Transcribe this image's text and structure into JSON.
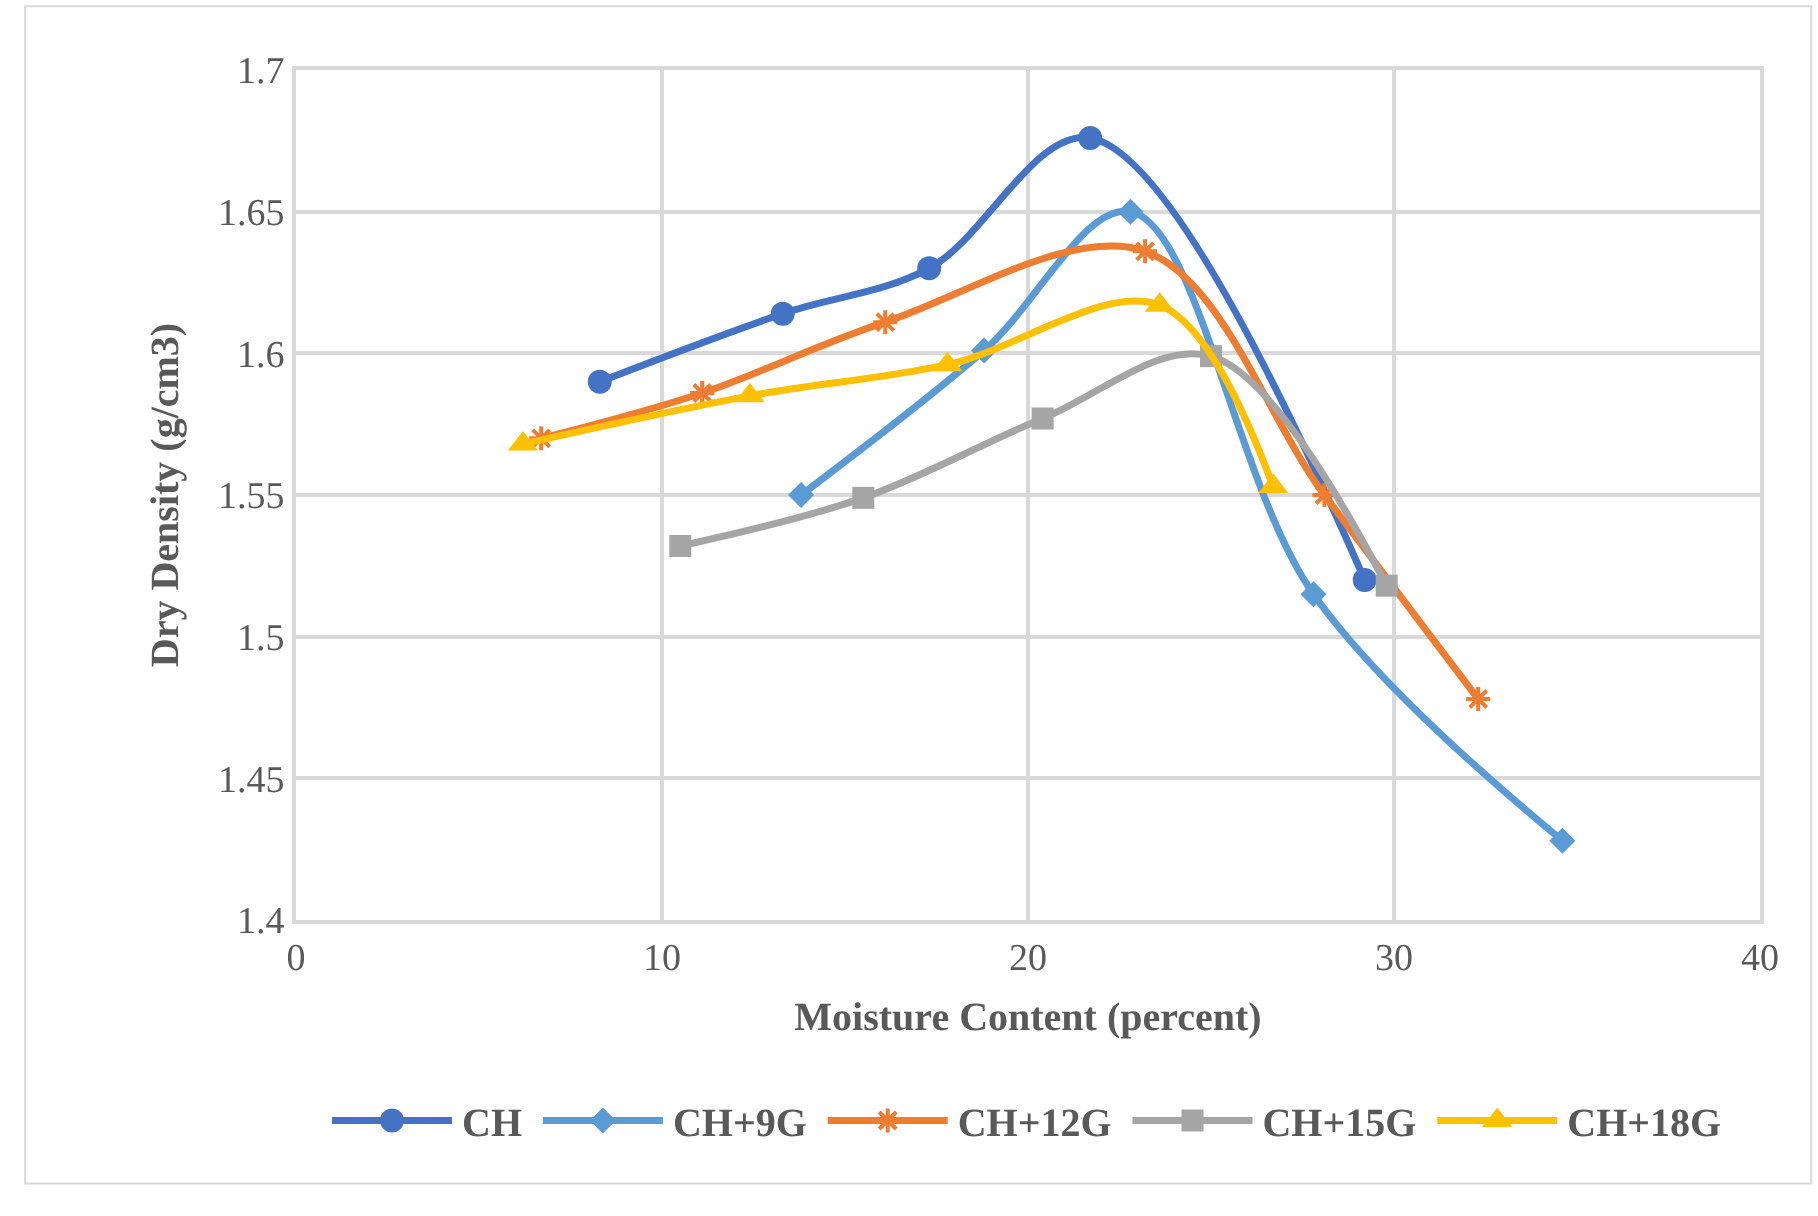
{
  "chart_data": {
    "type": "line",
    "xlabel": "Moisture Content (percent)",
    "ylabel": "Dry Density (g/cm3)",
    "xlim": [
      0,
      40
    ],
    "xticks": [
      0,
      10,
      20,
      30,
      40
    ],
    "ylim": [
      1.4,
      1.7
    ],
    "yticks": [
      1.4,
      1.45,
      1.5,
      1.55,
      1.6,
      1.65,
      1.7
    ],
    "grid": true,
    "legend": "bottom",
    "series": [
      {
        "name": "CH",
        "color": "#4472c4",
        "marker": "circle",
        "x": [
          8.3,
          13.3,
          17.3,
          21.7,
          29.2
        ],
        "values": [
          1.59,
          1.614,
          1.63,
          1.676,
          1.52
        ]
      },
      {
        "name": "CH+9G",
        "color": "#5b9bd5",
        "marker": "diamond",
        "x": [
          13.8,
          18.8,
          22.8,
          27.8,
          34.6
        ],
        "values": [
          1.55,
          1.601,
          1.65,
          1.515,
          1.428
        ]
      },
      {
        "name": "CH+12G",
        "color": "#ed7d31",
        "marker": "cross",
        "x": [
          6.7,
          11.1,
          16.1,
          23.2,
          28.1,
          32.3
        ],
        "values": [
          1.57,
          1.586,
          1.611,
          1.636,
          1.55,
          1.478
        ]
      },
      {
        "name": "CH+15G",
        "color": "#a5a5a5",
        "marker": "square",
        "x": [
          10.5,
          15.5,
          20.4,
          25.0,
          29.8
        ],
        "values": [
          1.532,
          1.549,
          1.577,
          1.599,
          1.518
        ]
      },
      {
        "name": "CH+18G",
        "color": "#ffc000",
        "marker": "triangle",
        "x": [
          6.2,
          12.4,
          17.8,
          23.6,
          26.7
        ],
        "values": [
          1.568,
          1.585,
          1.596,
          1.617,
          1.553
        ]
      }
    ]
  }
}
